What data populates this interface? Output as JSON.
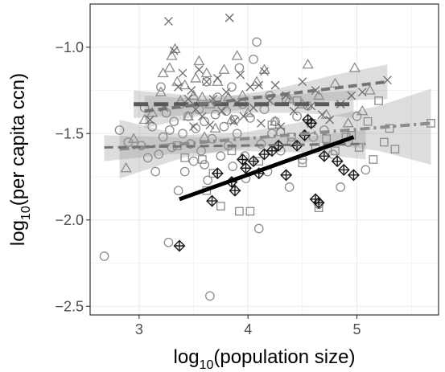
{
  "chart_data": {
    "type": "scatter",
    "title": "",
    "xlabel": {
      "base": "log",
      "sub": "10",
      "rest": "(population size)"
    },
    "ylabel": {
      "base": "log",
      "sub": "10",
      "rest": "(per capita ccn)"
    },
    "xlim": [
      2.55,
      5.75
    ],
    "ylim": [
      -2.55,
      -0.75
    ],
    "x_ticks": [
      3,
      4,
      5
    ],
    "x_tick_labels": [
      "3",
      "4",
      "5"
    ],
    "y_ticks": [
      -2.5,
      -2.0,
      -1.5,
      -1.0
    ],
    "y_tick_labels": [
      "−2.5",
      "−2.0",
      "−1.5",
      "−1.0"
    ],
    "grid": true,
    "legend": "none",
    "series": [
      {
        "marker": "circle",
        "color": "#8c8c8c",
        "points": [
          [
            2.68,
            -2.21
          ],
          [
            2.82,
            -1.48
          ],
          [
            2.9,
            -1.55
          ],
          [
            3.02,
            -1.57
          ],
          [
            3.05,
            -1.35
          ],
          [
            3.08,
            -1.64
          ],
          [
            3.12,
            -1.46
          ],
          [
            3.18,
            -1.62
          ],
          [
            3.2,
            -1.23
          ],
          [
            3.22,
            -1.52
          ],
          [
            3.25,
            -1.38
          ],
          [
            3.28,
            -1.48
          ],
          [
            3.3,
            -1.58
          ],
          [
            3.32,
            -1.43
          ],
          [
            3.36,
            -1.83
          ],
          [
            3.38,
            -1.33
          ],
          [
            3.4,
            -1.5
          ],
          [
            3.42,
            -1.72
          ],
          [
            3.45,
            -1.4
          ],
          [
            3.47,
            -1.56
          ],
          [
            3.5,
            -1.3
          ],
          [
            3.5,
            -1.66
          ],
          [
            3.52,
            -1.47
          ],
          [
            3.55,
            -1.36
          ],
          [
            3.57,
            -1.6
          ],
          [
            3.6,
            -1.43
          ],
          [
            3.62,
            -1.2
          ],
          [
            3.63,
            -1.77
          ],
          [
            3.65,
            -2.44
          ],
          [
            3.67,
            -1.53
          ],
          [
            3.7,
            -1.39
          ],
          [
            3.72,
            -1.29
          ],
          [
            3.75,
            -1.63
          ],
          [
            3.78,
            -1.46
          ],
          [
            3.8,
            -1.37
          ],
          [
            3.82,
            -1.57
          ],
          [
            3.85,
            -1.23
          ],
          [
            3.86,
            -1.69
          ],
          [
            3.88,
            -1.42
          ],
          [
            3.9,
            -1.5
          ],
          [
            3.92,
            -1.12
          ],
          [
            3.95,
            -1.33
          ],
          [
            3.97,
            -1.63
          ],
          [
            3.98,
            -1.76
          ],
          [
            4.02,
            -1.41
          ],
          [
            4.05,
            -1.07
          ],
          [
            4.08,
            -0.97
          ],
          [
            4.1,
            -2.05
          ],
          [
            4.12,
            -1.56
          ],
          [
            4.15,
            -1.36
          ],
          [
            4.18,
            -1.72
          ],
          [
            4.2,
            -1.28
          ],
          [
            4.22,
            -1.5
          ],
          [
            4.25,
            -1.43
          ],
          [
            4.3,
            -1.6
          ],
          [
            4.35,
            -1.3
          ],
          [
            4.38,
            -1.81
          ],
          [
            4.4,
            -1.55
          ],
          [
            4.45,
            -1.4
          ],
          [
            4.5,
            -1.65
          ],
          [
            4.55,
            -1.34
          ],
          [
            4.6,
            -1.52
          ],
          [
            4.65,
            -1.91
          ],
          [
            4.7,
            -1.48
          ],
          [
            4.78,
            -1.62
          ],
          [
            4.85,
            -1.81
          ],
          [
            4.92,
            -1.55
          ],
          [
            5.0,
            -1.4
          ],
          [
            5.08,
            -1.71
          ],
          [
            3.27,
            -2.13
          ],
          [
            3.15,
            -1.72
          ],
          [
            3.6,
            -1.68
          ]
        ]
      },
      {
        "marker": "square",
        "color": "#8c8c8c",
        "points": [
          [
            3.35,
            -1.57
          ],
          [
            3.42,
            -1.64
          ],
          [
            3.58,
            -1.65
          ],
          [
            3.62,
            -1.83
          ],
          [
            3.75,
            -1.92
          ],
          [
            3.85,
            -1.6
          ],
          [
            3.92,
            -1.95
          ],
          [
            4.02,
            -1.95
          ],
          [
            4.1,
            -1.66
          ],
          [
            4.22,
            -1.45
          ],
          [
            4.3,
            -1.49
          ],
          [
            4.4,
            -1.52
          ],
          [
            4.5,
            -1.67
          ],
          [
            4.58,
            -1.44
          ],
          [
            4.62,
            -1.58
          ],
          [
            4.65,
            -1.93
          ],
          [
            4.72,
            -1.53
          ],
          [
            4.8,
            -1.6
          ],
          [
            4.9,
            -1.52
          ],
          [
            5.02,
            -1.58
          ],
          [
            5.1,
            -1.43
          ],
          [
            5.15,
            -1.65
          ],
          [
            5.2,
            -1.31
          ],
          [
            5.25,
            -1.55
          ],
          [
            5.3,
            -1.47
          ],
          [
            5.35,
            -1.59
          ],
          [
            5.68,
            -1.44
          ],
          [
            4.45,
            -1.31
          ],
          [
            4.95,
            -1.51
          ],
          [
            3.68,
            -1.73
          ]
        ]
      },
      {
        "marker": "triangle",
        "color": "#8c8c8c",
        "points": [
          [
            2.88,
            -1.7
          ],
          [
            2.95,
            -1.53
          ],
          [
            3.05,
            -1.42
          ],
          [
            3.12,
            -1.38
          ],
          [
            3.2,
            -1.26
          ],
          [
            3.22,
            -1.15
          ],
          [
            3.28,
            -1.12
          ],
          [
            3.3,
            -1.05
          ],
          [
            3.33,
            -1.01
          ],
          [
            3.35,
            -1.2
          ],
          [
            3.38,
            -1.31
          ],
          [
            3.42,
            -1.22
          ],
          [
            3.45,
            -1.4
          ],
          [
            3.5,
            -1.28
          ],
          [
            3.52,
            -1.18
          ],
          [
            3.55,
            -1.08
          ],
          [
            3.58,
            -1.29
          ],
          [
            3.62,
            -1.15
          ],
          [
            3.65,
            -1.33
          ],
          [
            3.7,
            -1.47
          ],
          [
            3.72,
            -1.2
          ],
          [
            3.78,
            -1.13
          ],
          [
            3.82,
            -1.29
          ],
          [
            3.85,
            -1.42
          ],
          [
            3.9,
            -1.05
          ],
          [
            3.95,
            -1.28
          ],
          [
            4.0,
            -1.38
          ],
          [
            4.08,
            -1.2
          ],
          [
            4.15,
            -1.13
          ],
          [
            4.25,
            -1.43
          ],
          [
            4.38,
            -1.3
          ],
          [
            4.5,
            -1.33
          ],
          [
            4.55,
            -1.1
          ],
          [
            4.65,
            -1.28
          ],
          [
            4.72,
            -1.39
          ],
          [
            4.8,
            -1.21
          ],
          [
            4.92,
            -1.44
          ],
          [
            4.98,
            -1.12
          ],
          [
            5.05,
            -1.37
          ],
          [
            5.12,
            -1.25
          ],
          [
            3.6,
            -1.52
          ]
        ]
      },
      {
        "marker": "x",
        "color": "#6b6b6b",
        "points": [
          [
            3.1,
            -1.42
          ],
          [
            3.23,
            -1.35
          ],
          [
            3.27,
            -0.85
          ],
          [
            3.32,
            -1.02
          ],
          [
            3.36,
            -1.23
          ],
          [
            3.4,
            -1.15
          ],
          [
            3.45,
            -1.3
          ],
          [
            3.48,
            -1.25
          ],
          [
            3.52,
            -1.36
          ],
          [
            3.55,
            -1.13
          ],
          [
            3.58,
            -1.4
          ],
          [
            3.62,
            -1.2
          ],
          [
            3.65,
            -1.45
          ],
          [
            3.68,
            -1.3
          ],
          [
            3.72,
            -1.18
          ],
          [
            3.76,
            -1.37
          ],
          [
            3.8,
            -1.26
          ],
          [
            3.83,
            -0.83
          ],
          [
            3.87,
            -1.43
          ],
          [
            3.9,
            -1.32
          ],
          [
            3.93,
            -1.16
          ],
          [
            3.96,
            -1.4
          ],
          [
            4.02,
            -1.23
          ],
          [
            4.05,
            -1.35
          ],
          [
            4.1,
            -1.22
          ],
          [
            4.15,
            -1.14
          ],
          [
            4.2,
            -1.31
          ],
          [
            4.25,
            -1.22
          ],
          [
            4.3,
            -1.46
          ],
          [
            4.35,
            -1.28
          ],
          [
            4.42,
            -1.37
          ],
          [
            4.5,
            -1.2
          ],
          [
            4.58,
            -1.34
          ],
          [
            4.62,
            -1.25
          ],
          [
            4.68,
            -1.39
          ],
          [
            4.75,
            -1.42
          ],
          [
            4.85,
            -1.33
          ],
          [
            4.95,
            -1.28
          ],
          [
            5.05,
            -1.26
          ],
          [
            5.28,
            -1.19
          ],
          [
            4.12,
            -1.44
          ],
          [
            3.5,
            -1.46
          ]
        ]
      },
      {
        "marker": "diamond-plus",
        "color": "#1a1a1a",
        "points": [
          [
            3.37,
            -2.15
          ],
          [
            3.67,
            -1.89
          ],
          [
            3.85,
            -1.78
          ],
          [
            3.88,
            -1.83
          ],
          [
            3.95,
            -1.65
          ],
          [
            3.98,
            -1.7
          ],
          [
            4.1,
            -1.73
          ],
          [
            4.15,
            -1.62
          ],
          [
            4.22,
            -1.6
          ],
          [
            4.28,
            -1.57
          ],
          [
            4.35,
            -1.74
          ],
          [
            4.45,
            -1.57
          ],
          [
            4.52,
            -1.51
          ],
          [
            4.55,
            -1.42
          ],
          [
            4.58,
            -1.44
          ],
          [
            4.62,
            -1.88
          ],
          [
            4.65,
            -1.9
          ],
          [
            4.7,
            -1.63
          ],
          [
            4.82,
            -1.66
          ],
          [
            4.88,
            -1.71
          ],
          [
            4.97,
            -1.74
          ],
          [
            3.72,
            -1.73
          ],
          [
            4.05,
            -1.66
          ]
        ]
      }
    ],
    "fits": [
      {
        "x": [
          2.95,
          4.97
        ],
        "y": [
          -1.33,
          -1.33
        ],
        "color": "#595959",
        "dash": "long",
        "width": 5,
        "band": [
          [
            2.95,
            -1.41,
            -1.25
          ],
          [
            3.5,
            -1.39,
            -1.28
          ],
          [
            4.0,
            -1.38,
            -1.28
          ],
          [
            4.5,
            -1.38,
            -1.27
          ],
          [
            4.97,
            -1.41,
            -1.25
          ]
        ]
      },
      {
        "x": [
          3.05,
          5.28
        ],
        "y": [
          -1.37,
          -1.2
        ],
        "color": "#737373",
        "dash": "dash",
        "width": 4,
        "band": [
          [
            3.05,
            -1.47,
            -1.28
          ],
          [
            3.6,
            -1.39,
            -1.3
          ],
          [
            4.2,
            -1.34,
            -1.25
          ],
          [
            4.8,
            -1.31,
            -1.16
          ],
          [
            5.28,
            -1.3,
            -1.1
          ]
        ]
      },
      {
        "x": [
          2.82,
          5.68
        ],
        "y": [
          -1.59,
          -1.44
        ],
        "color": "#8c8c8c",
        "dash": "dashdot",
        "width": 4,
        "band": [
          [
            2.82,
            -1.76,
            -1.42
          ],
          [
            3.4,
            -1.64,
            -1.51
          ],
          [
            4.0,
            -1.58,
            -1.49
          ],
          [
            4.6,
            -1.55,
            -1.42
          ],
          [
            5.2,
            -1.6,
            -1.34
          ],
          [
            5.68,
            -1.68,
            -1.24
          ]
        ]
      },
      {
        "x": [
          2.68,
          5.08
        ],
        "y": [
          -1.58,
          -1.56
        ],
        "color": "#737373",
        "dash": "dash",
        "width": 3,
        "band": [
          [
            2.68,
            -1.66,
            -1.51
          ],
          [
            3.3,
            -1.62,
            -1.52
          ],
          [
            3.9,
            -1.6,
            -1.52
          ],
          [
            4.5,
            -1.61,
            -1.52
          ],
          [
            5.08,
            -1.65,
            -1.48
          ]
        ]
      },
      {
        "x": [
          3.37,
          4.97
        ],
        "y": [
          -1.88,
          -1.52
        ],
        "color": "#000000",
        "dash": "solid",
        "width": 5,
        "band": []
      }
    ]
  }
}
